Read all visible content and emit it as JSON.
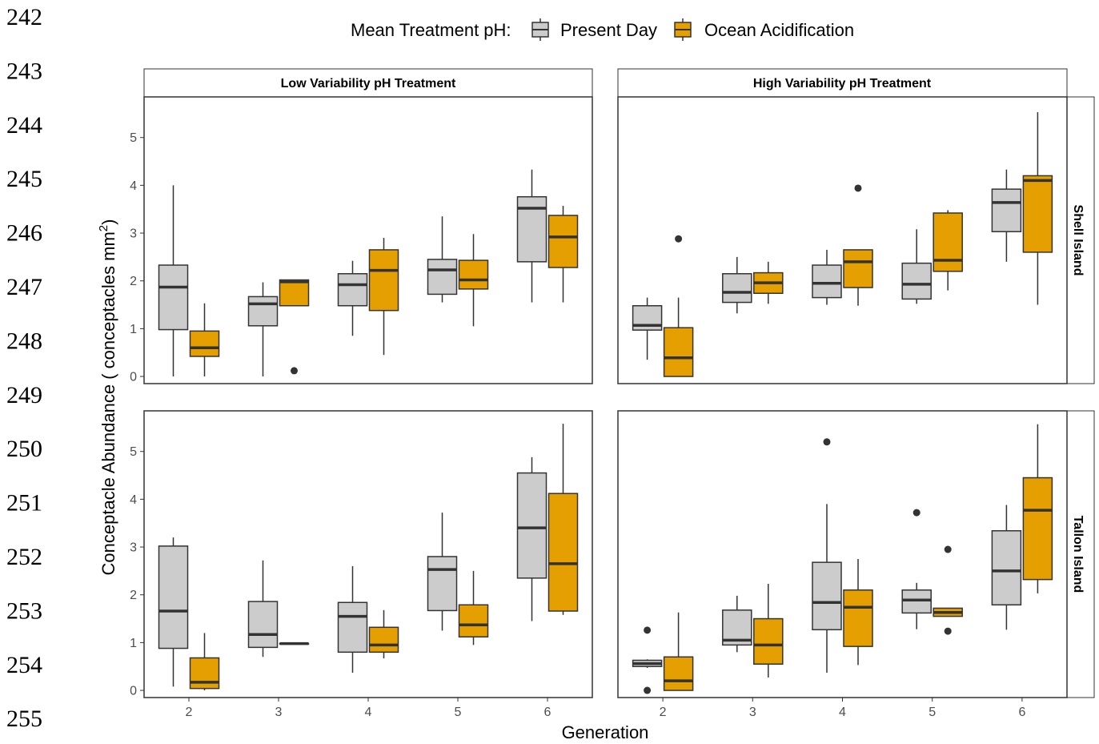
{
  "line_numbers": [
    "242",
    "243",
    "244",
    "245",
    "246",
    "247",
    "248",
    "249",
    "250",
    "251",
    "252",
    "253",
    "254",
    "255"
  ],
  "legend": {
    "title": "Mean Treatment pH:",
    "items": [
      {
        "label": "Present Day",
        "color": "#cccccc"
      },
      {
        "label": "Ocean Acidification",
        "color": "#e69f00"
      }
    ]
  },
  "colors": {
    "present_day": "#cccccc",
    "ocean_acidification": "#e69f00",
    "outline": "#333333"
  },
  "chart_data": {
    "type": "boxplot",
    "xlabel": "Generation",
    "ylabel": "Conceptacle Abundance ( conceptacles mm",
    "ylabel_sup": "2",
    "ylabel_tail": ")",
    "categories": [
      "2",
      "3",
      "4",
      "5",
      "6"
    ],
    "yticks": [
      0,
      1,
      2,
      3,
      4,
      5
    ],
    "ylim": [
      -0.15,
      5.85
    ],
    "col_strips": [
      "Low Variability pH Treatment",
      "High Variability pH Treatment"
    ],
    "row_strips": [
      "Shell Island",
      "Tallon Island"
    ],
    "panels": [
      {
        "row": 0,
        "col": 0,
        "series": [
          {
            "name": "Present Day",
            "boxes": [
              {
                "gen": "2",
                "min": 0,
                "q1": 0.98,
                "median": 1.87,
                "q3": 2.33,
                "max": 4.0,
                "outliers": []
              },
              {
                "gen": "3",
                "min": 0,
                "q1": 1.06,
                "median": 1.52,
                "q3": 1.67,
                "max": 1.97,
                "outliers": []
              },
              {
                "gen": "4",
                "min": 0.85,
                "q1": 1.48,
                "median": 1.92,
                "q3": 2.15,
                "max": 2.42,
                "outliers": []
              },
              {
                "gen": "5",
                "min": 1.55,
                "q1": 1.72,
                "median": 2.23,
                "q3": 2.45,
                "max": 3.35,
                "outliers": []
              },
              {
                "gen": "6",
                "min": 1.55,
                "q1": 2.4,
                "median": 3.52,
                "q3": 3.76,
                "max": 4.33,
                "outliers": []
              }
            ]
          },
          {
            "name": "Ocean Acidification",
            "boxes": [
              {
                "gen": "2",
                "min": 0,
                "q1": 0.42,
                "median": 0.6,
                "q3": 0.95,
                "max": 1.53,
                "outliers": []
              },
              {
                "gen": "3",
                "min": 1.48,
                "q1": 1.48,
                "median": 1.98,
                "q3": 2.02,
                "max": 2.02,
                "outliers": [
                  0.12
                ]
              },
              {
                "gen": "4",
                "min": 0.45,
                "q1": 1.38,
                "median": 2.22,
                "q3": 2.65,
                "max": 2.9,
                "outliers": []
              },
              {
                "gen": "5",
                "min": 1.05,
                "q1": 1.83,
                "median": 2.02,
                "q3": 2.43,
                "max": 2.98,
                "outliers": []
              },
              {
                "gen": "6",
                "min": 1.55,
                "q1": 2.28,
                "median": 2.92,
                "q3": 3.37,
                "max": 3.57,
                "outliers": []
              }
            ]
          }
        ]
      },
      {
        "row": 0,
        "col": 1,
        "series": [
          {
            "name": "Present Day",
            "boxes": [
              {
                "gen": "2",
                "min": 0.35,
                "q1": 0.97,
                "median": 1.07,
                "q3": 1.48,
                "max": 1.65,
                "outliers": []
              },
              {
                "gen": "3",
                "min": 1.32,
                "q1": 1.55,
                "median": 1.76,
                "q3": 2.15,
                "max": 2.5,
                "outliers": []
              },
              {
                "gen": "4",
                "min": 1.5,
                "q1": 1.65,
                "median": 1.95,
                "q3": 2.33,
                "max": 2.65,
                "outliers": []
              },
              {
                "gen": "5",
                "min": 1.52,
                "q1": 1.62,
                "median": 1.93,
                "q3": 2.37,
                "max": 3.08,
                "outliers": []
              },
              {
                "gen": "6",
                "min": 2.4,
                "q1": 3.03,
                "median": 3.64,
                "q3": 3.92,
                "max": 4.33,
                "outliers": []
              }
            ]
          },
          {
            "name": "Ocean Acidification",
            "boxes": [
              {
                "gen": "2",
                "min": 0,
                "q1": 0,
                "median": 0.39,
                "q3": 1.02,
                "max": 1.65,
                "outliers": [
                  2.88
                ]
              },
              {
                "gen": "3",
                "min": 1.52,
                "q1": 1.74,
                "median": 1.96,
                "q3": 2.17,
                "max": 2.4,
                "outliers": []
              },
              {
                "gen": "4",
                "min": 1.48,
                "q1": 1.86,
                "median": 2.4,
                "q3": 2.65,
                "max": 2.65,
                "outliers": [
                  3.94
                ]
              },
              {
                "gen": "5",
                "min": 1.8,
                "q1": 2.2,
                "median": 2.43,
                "q3": 3.42,
                "max": 3.48,
                "outliers": []
              },
              {
                "gen": "6",
                "min": 1.5,
                "q1": 2.6,
                "median": 4.1,
                "q3": 4.2,
                "max": 5.53,
                "outliers": []
              }
            ]
          }
        ]
      },
      {
        "row": 1,
        "col": 0,
        "series": [
          {
            "name": "Present Day",
            "boxes": [
              {
                "gen": "2",
                "min": 0.08,
                "q1": 0.88,
                "median": 1.66,
                "q3": 3.02,
                "max": 3.2,
                "outliers": []
              },
              {
                "gen": "3",
                "min": 0.7,
                "q1": 0.9,
                "median": 1.17,
                "q3": 1.86,
                "max": 2.72,
                "outliers": []
              },
              {
                "gen": "4",
                "min": 0.37,
                "q1": 0.8,
                "median": 1.55,
                "q3": 1.84,
                "max": 2.6,
                "outliers": []
              },
              {
                "gen": "5",
                "min": 1.25,
                "q1": 1.67,
                "median": 2.53,
                "q3": 2.8,
                "max": 3.72,
                "outliers": []
              },
              {
                "gen": "6",
                "min": 1.45,
                "q1": 2.35,
                "median": 3.4,
                "q3": 4.55,
                "max": 4.88,
                "outliers": []
              }
            ]
          },
          {
            "name": "Ocean Acidification",
            "boxes": [
              {
                "gen": "2",
                "min": 0,
                "q1": 0.04,
                "median": 0.17,
                "q3": 0.68,
                "max": 1.2,
                "outliers": []
              },
              {
                "gen": "3",
                "min": 0.98,
                "q1": 0.98,
                "median": 0.98,
                "q3": 0.98,
                "max": 0.98,
                "outliers": []
              },
              {
                "gen": "4",
                "min": 0.67,
                "q1": 0.8,
                "median": 0.95,
                "q3": 1.32,
                "max": 1.68,
                "outliers": []
              },
              {
                "gen": "5",
                "min": 0.95,
                "q1": 1.12,
                "median": 1.37,
                "q3": 1.79,
                "max": 2.5,
                "outliers": []
              },
              {
                "gen": "6",
                "min": 1.58,
                "q1": 1.66,
                "median": 2.65,
                "q3": 4.12,
                "max": 5.58,
                "outliers": []
              }
            ]
          }
        ]
      },
      {
        "row": 1,
        "col": 1,
        "series": [
          {
            "name": "Present Day",
            "boxes": [
              {
                "gen": "2",
                "min": 0.47,
                "q1": 0.5,
                "median": 0.56,
                "q3": 0.63,
                "max": 0.65,
                "outliers": [
                  1.26,
                  0.0
                ]
              },
              {
                "gen": "3",
                "min": 0.8,
                "q1": 0.95,
                "median": 1.05,
                "q3": 1.68,
                "max": 1.98,
                "outliers": []
              },
              {
                "gen": "4",
                "min": 0.37,
                "q1": 1.27,
                "median": 1.84,
                "q3": 2.68,
                "max": 3.9,
                "outliers": [
                  5.2
                ]
              },
              {
                "gen": "5",
                "min": 1.28,
                "q1": 1.62,
                "median": 1.89,
                "q3": 2.1,
                "max": 2.25,
                "outliers": [
                  3.72
                ]
              },
              {
                "gen": "6",
                "min": 1.27,
                "q1": 1.79,
                "median": 2.5,
                "q3": 3.34,
                "max": 3.88,
                "outliers": []
              }
            ]
          },
          {
            "name": "Ocean Acidification",
            "boxes": [
              {
                "gen": "2",
                "min": 0,
                "q1": 0,
                "median": 0.2,
                "q3": 0.7,
                "max": 1.63,
                "outliers": []
              },
              {
                "gen": "3",
                "min": 0.27,
                "q1": 0.55,
                "median": 0.95,
                "q3": 1.5,
                "max": 2.23,
                "outliers": []
              },
              {
                "gen": "4",
                "min": 0.53,
                "q1": 0.92,
                "median": 1.74,
                "q3": 2.1,
                "max": 2.75,
                "outliers": []
              },
              {
                "gen": "5",
                "min": 1.55,
                "q1": 1.55,
                "median": 1.63,
                "q3": 1.72,
                "max": 1.72,
                "outliers": [
                  2.95,
                  1.24
                ]
              },
              {
                "gen": "6",
                "min": 2.03,
                "q1": 2.32,
                "median": 3.77,
                "q3": 4.45,
                "max": 5.57,
                "outliers": []
              }
            ]
          }
        ]
      }
    ]
  }
}
